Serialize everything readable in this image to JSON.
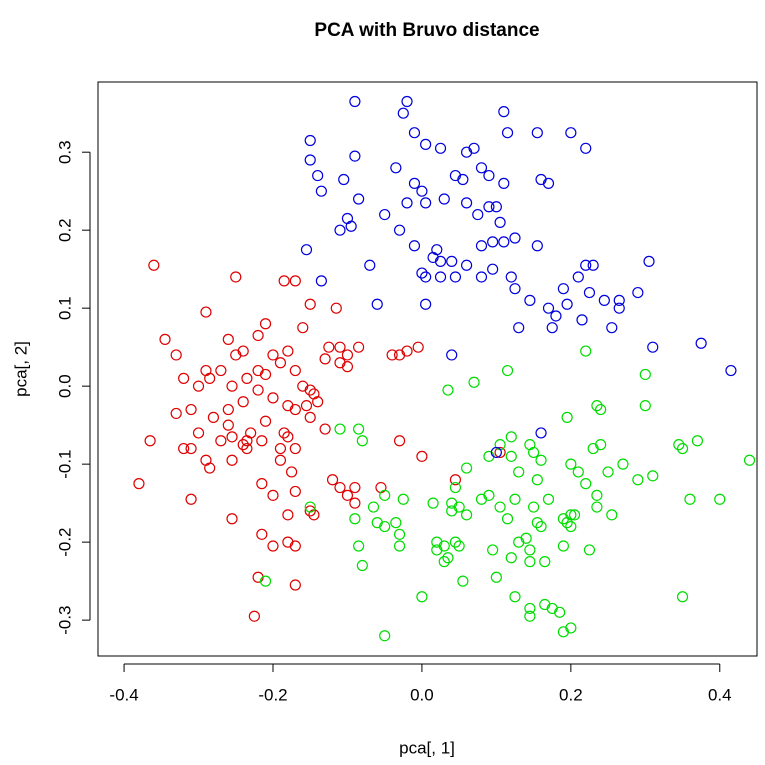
{
  "chart_data": {
    "type": "scatter",
    "title": "PCA with Bruvo distance",
    "x_label": "pca[, 1]",
    "y_label": "pca[, 2]",
    "xlim": [
      -0.435,
      0.45
    ],
    "ylim": [
      -0.346,
      0.39
    ],
    "xticks": [
      -0.4,
      -0.2,
      {
        "value": 0,
        "label": "0.0"
      },
      0.2,
      0.4
    ],
    "yticks": [
      -0.3,
      -0.2,
      -0.1,
      {
        "value": 0,
        "label": "0.0"
      },
      0.1,
      0.2,
      0.3
    ],
    "series": [
      {
        "color": "#df0000",
        "x": [
          -0.36,
          -0.25,
          -0.185,
          -0.17,
          -0.15,
          -0.115,
          -0.29,
          -0.16,
          -0.21,
          -0.22,
          -0.26,
          -0.345,
          -0.33,
          -0.25,
          -0.24,
          -0.2,
          -0.18,
          -0.125,
          -0.11,
          -0.1,
          -0.11,
          -0.13,
          -0.085,
          -0.04,
          -0.02,
          -0.03,
          -0.005,
          -0.1,
          -0.32,
          -0.29,
          -0.285,
          -0.27,
          -0.3,
          -0.22,
          -0.19,
          -0.17,
          -0.255,
          -0.235,
          -0.22,
          -0.21,
          -0.16,
          -0.15,
          -0.145,
          -0.33,
          -0.31,
          -0.28,
          -0.26,
          -0.24,
          -0.2,
          -0.18,
          -0.17,
          -0.155,
          -0.14,
          -0.15,
          -0.185,
          -0.21,
          -0.23,
          -0.26,
          -0.3,
          -0.32,
          -0.31,
          -0.365,
          -0.27,
          -0.255,
          -0.235,
          -0.235,
          -0.24,
          -0.215,
          -0.19,
          -0.18,
          -0.17,
          -0.13,
          -0.19,
          -0.175,
          -0.29,
          -0.285,
          -0.255,
          -0.215,
          -0.12,
          -0.09,
          -0.03,
          0.0,
          0.045,
          -0.31,
          -0.2,
          -0.17,
          -0.1,
          -0.11,
          -0.15,
          -0.09,
          -0.055,
          -0.145,
          -0.255,
          -0.18,
          -0.18,
          -0.215,
          -0.17,
          -0.2,
          -0.22,
          -0.17,
          -0.225,
          -0.38,
          0.105
        ],
        "values": [
          0.155,
          0.14,
          0.135,
          0.135,
          0.105,
          0.1,
          0.095,
          0.075,
          0.08,
          0.065,
          0.06,
          0.06,
          0.04,
          0.04,
          0.045,
          0.04,
          0.045,
          0.05,
          0.05,
          0.04,
          0.03,
          0.035,
          0.05,
          0.04,
          0.045,
          0.04,
          0.05,
          0.025,
          0.01,
          0.02,
          0.01,
          0.02,
          0.0,
          0.02,
          0.03,
          0.02,
          0.0,
          0.01,
          -0.005,
          0.015,
          0.0,
          -0.005,
          -0.01,
          -0.035,
          -0.03,
          -0.04,
          -0.03,
          -0.02,
          -0.015,
          -0.025,
          -0.03,
          -0.025,
          -0.02,
          -0.04,
          -0.06,
          -0.045,
          -0.06,
          -0.05,
          -0.06,
          -0.08,
          -0.08,
          -0.07,
          -0.07,
          -0.065,
          -0.07,
          -0.08,
          -0.075,
          -0.07,
          -0.08,
          -0.065,
          -0.08,
          -0.055,
          -0.095,
          -0.11,
          -0.095,
          -0.105,
          -0.095,
          -0.125,
          -0.12,
          -0.13,
          -0.07,
          -0.09,
          -0.12,
          -0.145,
          -0.14,
          -0.135,
          -0.14,
          -0.13,
          -0.16,
          -0.15,
          -0.13,
          -0.165,
          -0.17,
          -0.165,
          -0.2,
          -0.19,
          -0.205,
          -0.205,
          -0.245,
          -0.255,
          -0.295,
          -0.125,
          -0.085
        ]
      },
      {
        "color": "#00dd00",
        "x": [
          0.22,
          0.3,
          0.115,
          0.07,
          0.035,
          0.235,
          0.24,
          0.3,
          -0.11,
          -0.085,
          -0.08,
          0.12,
          0.195,
          0.105,
          0.145,
          0.2,
          0.23,
          0.24,
          0.345,
          0.35,
          0.37,
          0.44,
          0.09,
          0.12,
          0.15,
          0.16,
          0.13,
          0.06,
          0.27,
          0.21,
          0.25,
          0.155,
          0.22,
          0.31,
          0.17,
          0.09,
          0.08,
          0.125,
          0.045,
          0.235,
          0.29,
          0.36,
          0.4,
          -0.05,
          -0.065,
          -0.15,
          -0.025,
          0.015,
          0.04,
          0.05,
          0.04,
          0.06,
          0.105,
          0.15,
          0.155,
          0.16,
          0.2,
          0.19,
          0.195,
          0.205,
          0.2,
          0.235,
          0.255,
          0.115,
          0.13,
          -0.09,
          -0.06,
          -0.05,
          -0.035,
          -0.03,
          0.02,
          0.03,
          0.02,
          0.045,
          0.05,
          0.095,
          0.14,
          0.145,
          0.19,
          0.225,
          -0.085,
          -0.03,
          0.03,
          0.035,
          0.12,
          0.145,
          0.165,
          -0.08,
          0.055,
          0.1,
          -0.21,
          0.0,
          0.125,
          0.35,
          0.165,
          0.175,
          0.145,
          0.145,
          0.185,
          0.2,
          0.19,
          -0.05
        ],
        "values": [
          0.045,
          0.015,
          0.02,
          0.005,
          -0.005,
          -0.025,
          -0.03,
          -0.025,
          -0.055,
          -0.055,
          -0.07,
          -0.065,
          -0.04,
          -0.075,
          -0.075,
          -0.1,
          -0.08,
          -0.075,
          -0.075,
          -0.08,
          -0.07,
          -0.095,
          -0.09,
          -0.09,
          -0.085,
          -0.095,
          -0.11,
          -0.105,
          -0.1,
          -0.11,
          -0.11,
          -0.12,
          -0.125,
          -0.115,
          -0.145,
          -0.14,
          -0.145,
          -0.145,
          -0.13,
          -0.14,
          -0.12,
          -0.145,
          -0.145,
          -0.14,
          -0.155,
          -0.155,
          -0.145,
          -0.15,
          -0.15,
          -0.155,
          -0.16,
          -0.165,
          -0.155,
          -0.155,
          -0.175,
          -0.18,
          -0.165,
          -0.17,
          -0.175,
          -0.165,
          -0.18,
          -0.155,
          -0.165,
          -0.17,
          -0.2,
          -0.17,
          -0.175,
          -0.18,
          -0.175,
          -0.19,
          -0.2,
          -0.205,
          -0.21,
          -0.2,
          -0.205,
          -0.21,
          -0.195,
          -0.21,
          -0.205,
          -0.21,
          -0.205,
          -0.205,
          -0.225,
          -0.22,
          -0.22,
          -0.225,
          -0.225,
          -0.23,
          -0.25,
          -0.245,
          -0.25,
          -0.27,
          -0.27,
          -0.27,
          -0.28,
          -0.285,
          -0.285,
          -0.295,
          -0.29,
          -0.31,
          -0.315,
          -0.32
        ]
      },
      {
        "color": "#0000dd",
        "x": [
          -0.09,
          -0.02,
          -0.025,
          0.11,
          -0.15,
          -0.01,
          0.115,
          0.155,
          0.2,
          -0.15,
          -0.09,
          0.005,
          0.025,
          0.06,
          0.07,
          0.22,
          -0.14,
          -0.105,
          -0.035,
          0.045,
          0.08,
          0.09,
          0.11,
          0.16,
          0.17,
          -0.135,
          -0.085,
          -0.01,
          0.0,
          0.03,
          0.055,
          0.06,
          0.075,
          0.09,
          0.1,
          0.005,
          -0.1,
          -0.05,
          -0.02,
          0.105,
          -0.11,
          -0.095,
          -0.03,
          -0.01,
          0.02,
          -0.155,
          0.08,
          0.095,
          0.11,
          0.125,
          0.155,
          0.025,
          0.015,
          -0.07,
          0.04,
          0.06,
          0.095,
          0.22,
          0.23,
          0.305,
          0.0,
          0.005,
          0.025,
          0.045,
          0.08,
          0.12,
          0.21,
          -0.135,
          0.125,
          0.19,
          0.145,
          0.17,
          0.225,
          0.245,
          0.265,
          0.29,
          0.005,
          -0.06,
          0.18,
          0.195,
          0.265,
          0.255,
          0.13,
          0.175,
          0.215,
          0.31,
          0.375,
          0.415,
          0.04,
          0.16,
          0.1
        ],
        "values": [
          0.365,
          0.365,
          0.35,
          0.352,
          0.315,
          0.325,
          0.325,
          0.325,
          0.325,
          0.29,
          0.295,
          0.31,
          0.305,
          0.3,
          0.305,
          0.305,
          0.27,
          0.265,
          0.28,
          0.27,
          0.28,
          0.27,
          0.26,
          0.265,
          0.26,
          0.25,
          0.24,
          0.26,
          0.25,
          0.24,
          0.265,
          0.235,
          0.22,
          0.23,
          0.23,
          0.235,
          0.215,
          0.22,
          0.235,
          0.21,
          0.2,
          0.205,
          0.2,
          0.18,
          0.175,
          0.175,
          0.18,
          0.185,
          0.185,
          0.19,
          0.18,
          0.16,
          0.165,
          0.155,
          0.16,
          0.155,
          0.15,
          0.155,
          0.155,
          0.16,
          0.145,
          0.14,
          0.14,
          0.14,
          0.14,
          0.14,
          0.14,
          0.135,
          0.125,
          0.125,
          0.11,
          0.1,
          0.12,
          0.11,
          0.11,
          0.12,
          0.105,
          0.105,
          0.09,
          0.105,
          0.1,
          0.075,
          0.075,
          0.075,
          0.085,
          0.05,
          0.055,
          0.02,
          0.04,
          -0.06,
          -0.085
        ]
      }
    ]
  }
}
